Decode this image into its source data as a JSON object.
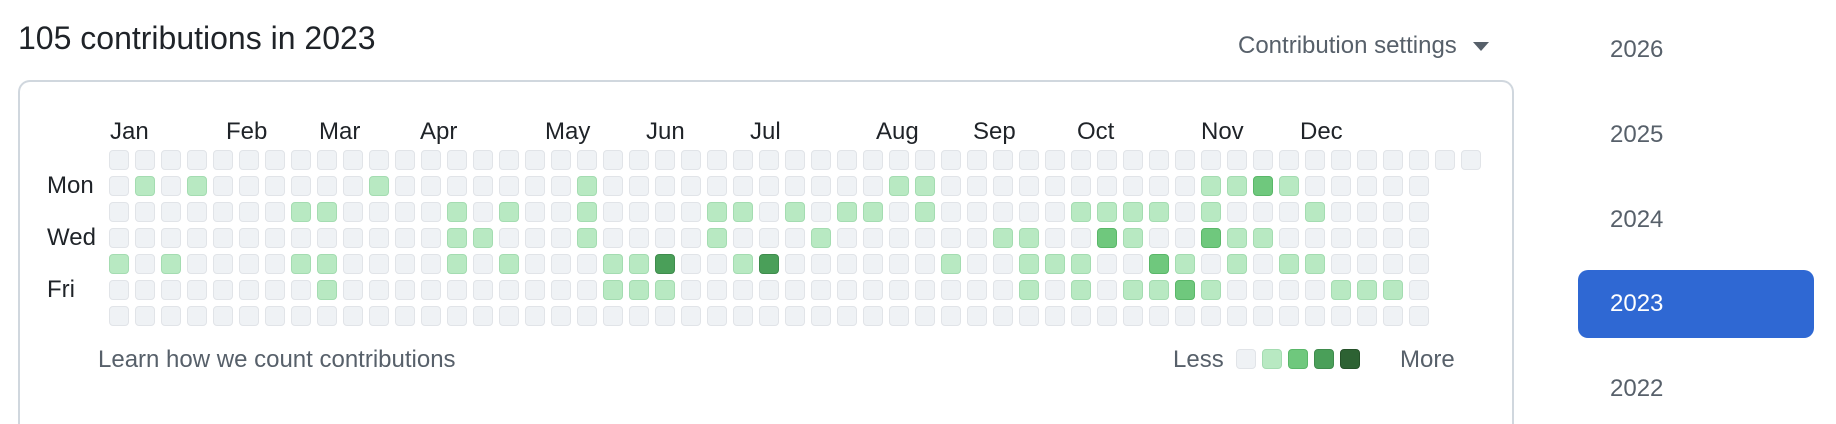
{
  "title": "105 contributions in 2023",
  "settings": {
    "label": "Contribution settings"
  },
  "graph": {
    "months": [
      "Jan",
      "Feb",
      "Mar",
      "Apr",
      "May",
      "Jun",
      "Jul",
      "Aug",
      "Sep",
      "Oct",
      "Nov",
      "Dec"
    ],
    "days": [
      "Mon",
      "Wed",
      "Fri"
    ],
    "learn": "Learn how we count contributions",
    "legend": {
      "less": "Less",
      "more": "More"
    },
    "levels": [
      "0000000000000000000000000000000000000000000000000000",
      "010100000010000000100000000000110000000000112100000",
      "000000011000010100100001101011010000011110100010000",
      "000000000000011000100001000100000011002100211000000",
      "101000011000010100011300130000001001110021010110000",
      "000000001000000000011100000000000001010112100001110",
      "000000000000000000000000000000000000000000000000000"
    ]
  },
  "years": [
    "2026",
    "2025",
    "2024",
    "2023",
    "2022"
  ],
  "selected_year": "2023",
  "colors": {
    "selected": "#2f68d3",
    "level0": "#eff2f5",
    "level1": "#b8e9c2",
    "level2": "#6fc87d",
    "level3": "#4a9f59",
    "level4": "#2d6233"
  }
}
